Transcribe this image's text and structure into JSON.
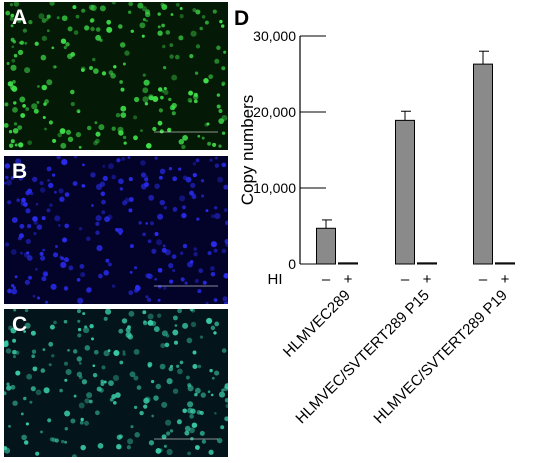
{
  "panels": [
    {
      "label": "A",
      "stain": "green",
      "color": "#3fe04a",
      "bg": "#051a06"
    },
    {
      "label": "B",
      "stain": "blue",
      "color": "#2a2cf0",
      "bg": "#03032a"
    },
    {
      "label": "C",
      "stain": "merge",
      "color": "#39c9a6",
      "bg": "#03141a"
    }
  ],
  "chart_data": {
    "type": "bar",
    "panel_label": "D",
    "ylabel": "Copy numbers",
    "ylim": [
      0,
      30000
    ],
    "yticks": [
      0,
      10000,
      20000,
      30000
    ],
    "ytick_labels": [
      "0",
      "10,000",
      "20,000",
      "30,000"
    ],
    "treatment_label": "HI",
    "categories": [
      "HLMVEC289",
      "HLMVEC/SVTERT289 P15",
      "HLMVEC/SVTERT289 P19"
    ],
    "sign_minus": "–",
    "sign_plus": "+",
    "series": [
      {
        "values": [
          4700,
          18900,
          26300
        ],
        "errors": [
          1100,
          1200,
          1700
        ]
      },
      {
        "values": [
          150,
          150,
          150
        ],
        "errors": [
          0,
          0,
          0
        ]
      }
    ],
    "bar_color": "#8a8a8a",
    "grid": false
  }
}
